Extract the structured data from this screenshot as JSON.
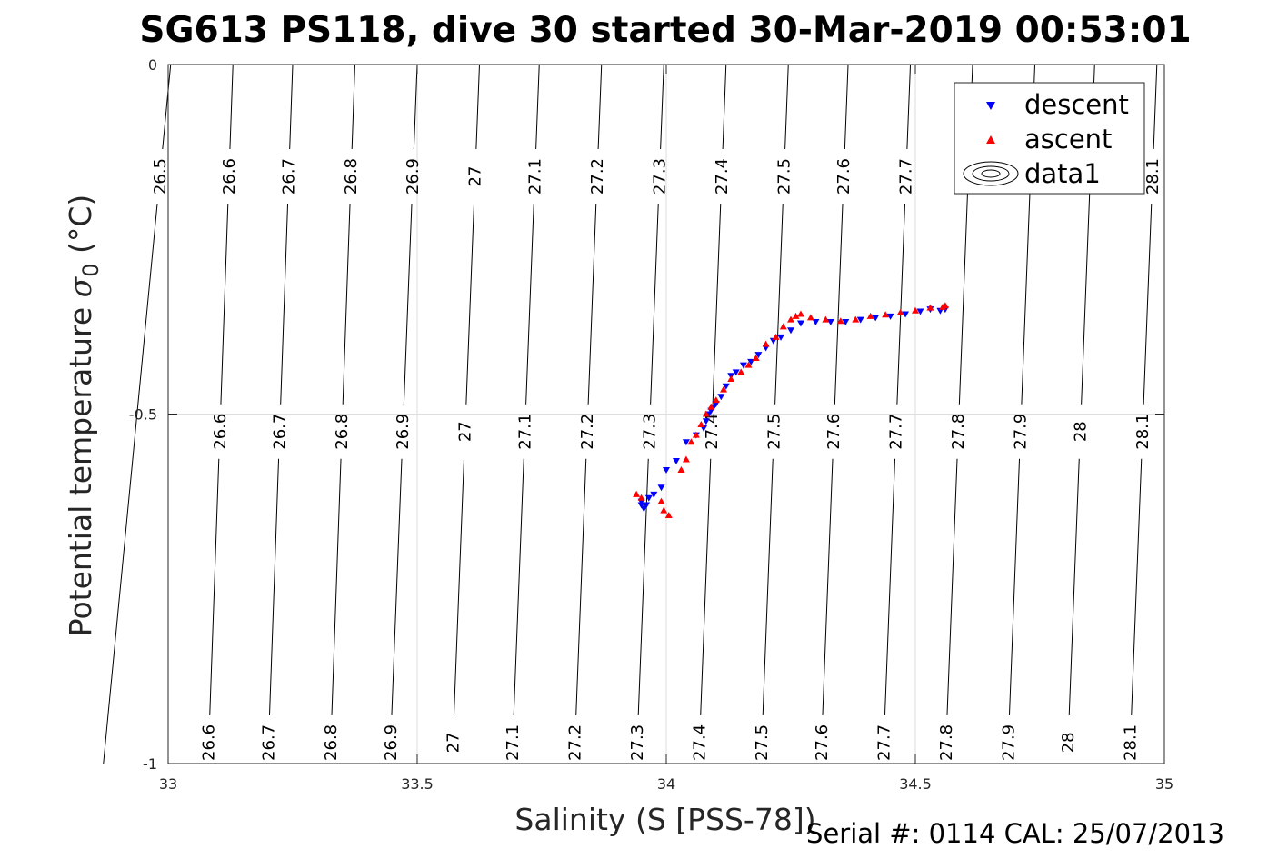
{
  "chart_data": {
    "type": "scatter",
    "title": "SG613 PS118, dive 30 started 30-Mar-2019 00:53:01",
    "xlabel": "Salinity (S [PSS-78])",
    "ylabel_main": "Potential temperature ",
    "ylabel_sigma": "σ",
    "ylabel_sub": "0",
    "ylabel_unit": " (°C)",
    "xlim": [
      33,
      35
    ],
    "ylim": [
      -1,
      0
    ],
    "x_ticks": [
      33,
      33.5,
      34,
      34.5,
      35
    ],
    "x_tick_labels": [
      "33",
      "33.5",
      "34",
      "34.5",
      "35"
    ],
    "y_ticks": [
      0,
      -0.5,
      -1
    ],
    "y_tick_labels": [
      "0",
      "-0.5",
      "-1"
    ],
    "grid": true,
    "legend_position": "top-right",
    "colors": {
      "descent": "#0000ff",
      "ascent": "#ff0000",
      "contour": "#000000",
      "grid": "#dedede"
    },
    "contour_labels_top": [
      "26.5",
      "26.6",
      "26.7",
      "26.8",
      "26.9",
      "27",
      "27.1",
      "27.2",
      "27.3",
      "27.4",
      "27.5",
      "27.6",
      "27.7",
      "28.1"
    ],
    "contour_labels_mid": [
      "26.6",
      "26.7",
      "26.8",
      "26.9",
      "27",
      "27.1",
      "27.2",
      "27.3",
      "27.4",
      "27.5",
      "27.6",
      "27.7",
      "27.8",
      "27.9",
      "28",
      "28.1"
    ],
    "contour_labels_bottom": [
      "26.6",
      "26.7",
      "26.8",
      "26.9",
      "27",
      "27.1",
      "27.2",
      "27.3",
      "27.4",
      "27.5",
      "27.6",
      "27.7",
      "27.8",
      "27.9",
      "28",
      "28.1"
    ],
    "contour_lines": [
      {
        "label": "26.5",
        "x_top": 33.005,
        "x_bottom": 32.87
      },
      {
        "label": "26.6",
        "x_top": 33.13,
        "x_bottom": 33.08
      },
      {
        "label": "26.7",
        "x_top": 33.25,
        "x_bottom": 33.2
      },
      {
        "label": "26.8",
        "x_top": 33.375,
        "x_bottom": 33.325
      },
      {
        "label": "26.9",
        "x_top": 33.5,
        "x_bottom": 33.445
      },
      {
        "label": "27",
        "x_top": 33.625,
        "x_bottom": 33.57
      },
      {
        "label": "27.1",
        "x_top": 33.745,
        "x_bottom": 33.69
      },
      {
        "label": "27.2",
        "x_top": 33.87,
        "x_bottom": 33.815
      },
      {
        "label": "27.3",
        "x_top": 33.995,
        "x_bottom": 33.94
      },
      {
        "label": "27.4",
        "x_top": 34.12,
        "x_bottom": 34.065
      },
      {
        "label": "27.5",
        "x_top": 34.245,
        "x_bottom": 34.19
      },
      {
        "label": "27.6",
        "x_top": 34.365,
        "x_bottom": 34.31
      },
      {
        "label": "27.7",
        "x_top": 34.49,
        "x_bottom": 34.435
      },
      {
        "label": "27.8",
        "x_top": 34.615,
        "x_bottom": 34.56
      },
      {
        "label": "27.9",
        "x_top": 34.74,
        "x_bottom": 34.685
      },
      {
        "label": "28",
        "x_top": 34.86,
        "x_bottom": 34.805
      },
      {
        "label": "28.1",
        "x_top": 34.985,
        "x_bottom": 34.93
      }
    ],
    "series": [
      {
        "name": "descent",
        "marker": "triangle-down",
        "color": "#0000ff",
        "x": [
          33.95,
          33.95,
          33.955,
          33.96,
          33.965,
          33.975,
          33.99,
          34.0,
          34.02,
          34.04,
          34.06,
          34.075,
          34.08,
          34.085,
          34.09,
          34.095,
          34.1,
          34.11,
          34.12,
          34.13,
          34.14,
          34.155,
          34.17,
          34.185,
          34.2,
          34.215,
          34.23,
          34.25,
          34.27,
          34.3,
          34.33,
          34.36,
          34.39,
          34.42,
          34.45,
          34.48,
          34.51,
          34.53,
          34.55,
          34.56
        ],
        "y": [
          -0.625,
          -0.63,
          -0.635,
          -0.63,
          -0.62,
          -0.615,
          -0.605,
          -0.58,
          -0.567,
          -0.54,
          -0.53,
          -0.52,
          -0.51,
          -0.5,
          -0.495,
          -0.49,
          -0.485,
          -0.475,
          -0.46,
          -0.445,
          -0.44,
          -0.43,
          -0.425,
          -0.415,
          -0.405,
          -0.395,
          -0.39,
          -0.38,
          -0.37,
          -0.368,
          -0.368,
          -0.368,
          -0.365,
          -0.362,
          -0.36,
          -0.357,
          -0.353,
          -0.35,
          -0.352,
          -0.35
        ]
      },
      {
        "name": "ascent",
        "marker": "triangle-up",
        "color": "#ff0000",
        "x": [
          33.94,
          33.95,
          33.99,
          33.995,
          34.005,
          34.03,
          34.04,
          34.05,
          34.06,
          34.07,
          34.08,
          34.09,
          34.1,
          34.115,
          34.13,
          34.15,
          34.165,
          34.18,
          34.2,
          34.22,
          34.235,
          34.25,
          34.26,
          34.27,
          34.29,
          34.32,
          34.35,
          34.38,
          34.41,
          34.44,
          34.47,
          34.5,
          34.53,
          34.555,
          34.56
        ],
        "y": [
          -0.615,
          -0.62,
          -0.625,
          -0.638,
          -0.645,
          -0.58,
          -0.565,
          -0.54,
          -0.53,
          -0.515,
          -0.5,
          -0.49,
          -0.48,
          -0.465,
          -0.45,
          -0.44,
          -0.43,
          -0.42,
          -0.4,
          -0.39,
          -0.375,
          -0.365,
          -0.36,
          -0.357,
          -0.362,
          -0.365,
          -0.367,
          -0.365,
          -0.36,
          -0.358,
          -0.355,
          -0.352,
          -0.348,
          -0.347,
          -0.345
        ]
      }
    ],
    "legend": [
      {
        "label": "descent",
        "marker": "triangle-down"
      },
      {
        "label": "ascent",
        "marker": "triangle-up"
      },
      {
        "label": "data1",
        "marker": "contour"
      }
    ]
  },
  "footer": "Serial #: 0114  CAL: 25/07/2013"
}
